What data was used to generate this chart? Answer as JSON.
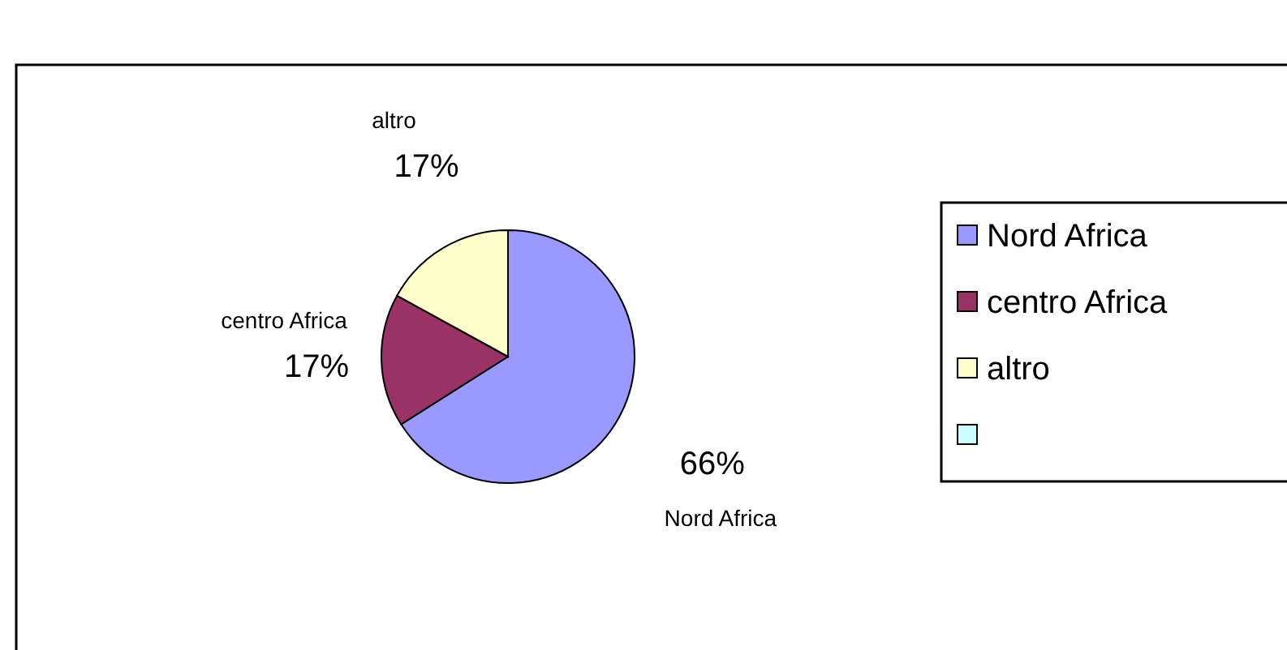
{
  "chart_data": {
    "type": "pie",
    "categories": [
      "Nord Africa",
      "centro Africa",
      "altro",
      null
    ],
    "values": [
      66,
      17,
      17,
      0
    ],
    "colors": [
      "#9999ff",
      "#993366",
      "#ffffcc",
      "#ccffff"
    ],
    "value_labels": [
      "66%",
      "17%",
      "17%",
      null
    ],
    "legend": "right"
  }
}
